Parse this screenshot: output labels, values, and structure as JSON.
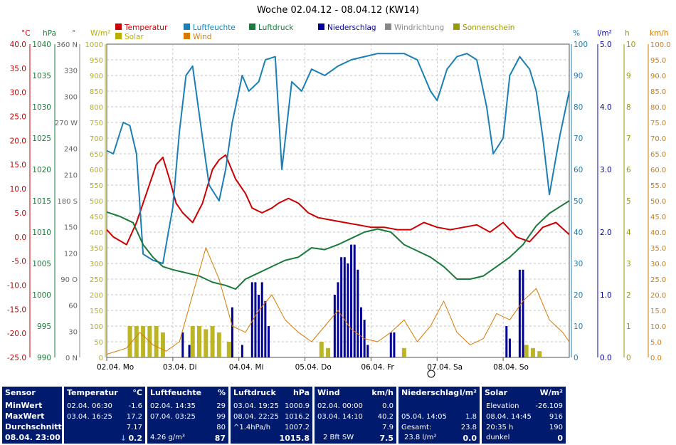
{
  "chart_data": {
    "type": "line",
    "title": "Woche 02.04.12 - 08.04.12 (KW14)",
    "legend": [
      {
        "name": "Temperatur",
        "color": "#cc0000"
      },
      {
        "name": "Luftfeuchte",
        "color": "#1a7fb5"
      },
      {
        "name": "Luftdruck",
        "color": "#1a7a3a"
      },
      {
        "name": "Niederschlag",
        "color": "#000099"
      },
      {
        "name": "Windrichtung",
        "color": "#888888"
      },
      {
        "name": "Sonnenschein",
        "color": "#999900"
      },
      {
        "name": "Solar",
        "color": "#b8b000"
      },
      {
        "name": "Wind",
        "color": "#d87a00"
      }
    ],
    "x_ticks": [
      "02.04. Mo",
      "03.04. Di",
      "04.04. Mi",
      "05.04. Do",
      "06.04. Fr",
      "07.04. Sa",
      "08.04. So"
    ],
    "axes": {
      "temperature": {
        "unit": "°C",
        "color": "#cc0000",
        "ticks": [
          "40.0",
          "35.0",
          "30.0",
          "25.0",
          "20.0",
          "15.0",
          "10.0",
          "5.0",
          "0.0",
          "-5.0",
          "-10.0",
          "-15.0",
          "-20.0",
          "-25.0"
        ]
      },
      "pressure": {
        "unit": "hPa",
        "color": "#1a7a3a",
        "ticks": [
          "1040",
          "1035",
          "1030",
          "1025",
          "1020",
          "1015",
          "1010",
          "1005",
          "1000",
          "995",
          "990"
        ]
      },
      "direction": {
        "unit": "°",
        "color": "#666666",
        "ticks": [
          "360 N",
          "330",
          "300",
          "270 W",
          "240",
          "210",
          "180 S",
          "150",
          "120",
          "90 O",
          "60",
          "30",
          "0 N"
        ]
      },
      "solar": {
        "unit": "W/m²",
        "color": "#b8b000",
        "ticks": [
          "1000",
          "950",
          "900",
          "850",
          "800",
          "750",
          "700",
          "650",
          "600",
          "550",
          "500",
          "450",
          "400",
          "350",
          "300",
          "250",
          "200",
          "150",
          "100",
          "50",
          "0"
        ]
      },
      "humidity": {
        "unit": "%",
        "color": "#1a7fb5",
        "ticks": [
          "100",
          "90",
          "80",
          "70",
          "60",
          "50",
          "40",
          "30",
          "20",
          "10",
          "0"
        ]
      },
      "rain": {
        "unit": "l/m²",
        "color": "#000099",
        "ticks": [
          "5.0",
          "4.0",
          "3.0",
          "2.0",
          "1.0",
          "0.0"
        ]
      },
      "sunshine": {
        "unit": "h",
        "color": "#999900",
        "ticks": [
          "10",
          "9",
          "8",
          "7",
          "6",
          "5",
          "4",
          "3",
          "2",
          "1",
          "0"
        ]
      },
      "wind": {
        "unit": "km/h",
        "color": "#d87a00",
        "ticks": [
          "100.0",
          "95.0",
          "90.0",
          "85.0",
          "80.0",
          "75.0",
          "70.0",
          "65.0",
          "60.0",
          "55.0",
          "50.0",
          "45.0",
          "40.0",
          "35.0",
          "30.0",
          "25.0",
          "20.0",
          "15.0",
          "10.0",
          "5.0",
          "0.0"
        ]
      }
    },
    "x_range_days": [
      0,
      7
    ],
    "series": [
      {
        "name": "Temperatur",
        "color": "#cc0000",
        "ylim": [
          -25,
          40
        ],
        "x": [
          0,
          0.1,
          0.3,
          0.45,
          0.6,
          0.75,
          0.85,
          0.95,
          1.05,
          1.15,
          1.3,
          1.45,
          1.6,
          1.7,
          1.8,
          1.95,
          2.1,
          2.2,
          2.35,
          2.5,
          2.6,
          2.75,
          2.9,
          3.05,
          3.2,
          3.4,
          3.6,
          3.8,
          4.0,
          4.2,
          4.4,
          4.6,
          4.8,
          5.0,
          5.2,
          5.4,
          5.6,
          5.8,
          6.0,
          6.2,
          6.4,
          6.6,
          6.8,
          7.0
        ],
        "y": [
          1.5,
          0,
          -1.6,
          3,
          9,
          15,
          16.5,
          12,
          7,
          5,
          3,
          7,
          14,
          16,
          17,
          12,
          9,
          6,
          5,
          6,
          7,
          8,
          7,
          5,
          4,
          3.5,
          3,
          2.5,
          2,
          2,
          1.5,
          1.5,
          3,
          2,
          1.5,
          2,
          2.5,
          1,
          3,
          0,
          -1,
          2,
          3,
          0.5
        ]
      },
      {
        "name": "Luftfeuchte",
        "color": "#1a7fb5",
        "ylim": [
          0,
          100
        ],
        "x": [
          0,
          0.1,
          0.25,
          0.35,
          0.45,
          0.55,
          0.7,
          0.85,
          1.0,
          1.1,
          1.2,
          1.3,
          1.45,
          1.55,
          1.7,
          1.8,
          1.9,
          2.05,
          2.15,
          2.3,
          2.4,
          2.55,
          2.65,
          2.8,
          2.95,
          3.1,
          3.3,
          3.5,
          3.7,
          3.9,
          4.1,
          4.3,
          4.5,
          4.7,
          4.9,
          5.0,
          5.15,
          5.3,
          5.45,
          5.6,
          5.75,
          5.85,
          6.0,
          6.1,
          6.25,
          6.4,
          6.5,
          6.6,
          6.7,
          6.85,
          7.0
        ],
        "y": [
          66,
          65,
          75,
          74,
          65,
          33,
          31,
          30,
          48,
          72,
          90,
          93,
          70,
          55,
          50,
          60,
          75,
          90,
          85,
          88,
          95,
          96,
          60,
          88,
          85,
          92,
          90,
          93,
          95,
          96,
          97,
          97,
          97,
          95,
          85,
          82,
          92,
          96,
          97,
          95,
          80,
          65,
          70,
          90,
          96,
          92,
          85,
          70,
          52,
          70,
          85
        ]
      },
      {
        "name": "Luftdruck",
        "color": "#1a7a3a",
        "ylim": [
          990,
          1040
        ],
        "x": [
          0,
          0.2,
          0.4,
          0.55,
          0.7,
          0.85,
          1.0,
          1.2,
          1.4,
          1.6,
          1.8,
          1.95,
          2.1,
          2.3,
          2.5,
          2.7,
          2.9,
          3.1,
          3.3,
          3.5,
          3.7,
          3.9,
          4.1,
          4.3,
          4.5,
          4.7,
          4.9,
          5.1,
          5.3,
          5.5,
          5.7,
          5.9,
          6.1,
          6.3,
          6.5,
          6.7,
          6.85,
          7.0
        ],
        "y": [
          1013.2,
          1012.5,
          1011.5,
          1008,
          1006,
          1004.5,
          1004,
          1003.5,
          1003,
          1002,
          1001.5,
          1000.9,
          1002.5,
          1003.5,
          1004.5,
          1005.5,
          1006,
          1007.5,
          1007.2,
          1008,
          1009,
          1010,
          1010.5,
          1010,
          1008,
          1007,
          1006,
          1004.5,
          1002.5,
          1002.5,
          1003,
          1004.5,
          1006,
          1008,
          1011,
          1013,
          1014,
          1015
        ]
      },
      {
        "name": "Wind",
        "color": "#d87a00",
        "ylim": [
          0,
          100
        ],
        "x": [
          0,
          0.3,
          0.5,
          0.7,
          0.9,
          1.1,
          1.3,
          1.5,
          1.7,
          1.9,
          2.1,
          2.3,
          2.5,
          2.7,
          2.9,
          3.1,
          3.3,
          3.5,
          3.7,
          3.9,
          4.1,
          4.3,
          4.5,
          4.7,
          4.9,
          5.1,
          5.3,
          5.5,
          5.7,
          5.9,
          6.1,
          6.3,
          6.5,
          6.7,
          6.9,
          7.0
        ],
        "y": [
          1,
          3,
          8,
          4,
          2,
          5,
          20,
          35,
          25,
          10,
          8,
          15,
          20,
          12,
          8,
          5,
          10,
          15,
          9,
          6,
          5,
          8,
          12,
          5,
          10,
          18,
          8,
          4,
          6,
          14,
          12,
          18,
          22,
          12,
          8,
          5
        ]
      }
    ],
    "rain_bars": {
      "ylim": [
        0,
        5
      ],
      "x": [
        1.15,
        1.25,
        1.9,
        2.05,
        2.2,
        2.25,
        2.3,
        2.35,
        2.4,
        2.45,
        3.45,
        3.5,
        3.55,
        3.6,
        3.65,
        3.7,
        3.75,
        3.8,
        3.85,
        3.9,
        3.95,
        4.3,
        4.35,
        6.05,
        6.1,
        6.25,
        6.3
      ],
      "y": [
        0.4,
        0.2,
        0.8,
        0.2,
        1.2,
        1.2,
        1.0,
        1.2,
        0.9,
        0.5,
        1.0,
        1.2,
        1.6,
        1.6,
        1.5,
        1.8,
        1.8,
        1.4,
        0.8,
        0.6,
        0.2,
        0.4,
        0.4,
        0.5,
        0.3,
        1.4,
        1.4
      ]
    },
    "sunshine_bars": {
      "ylim": [
        0,
        10
      ],
      "x": [
        0.35,
        0.45,
        0.55,
        0.65,
        0.75,
        0.85,
        1.3,
        1.4,
        1.5,
        1.6,
        1.7,
        1.85,
        3.25,
        3.35,
        4.5,
        6.35,
        6.45,
        6.55
      ],
      "y": [
        1,
        1,
        1,
        1,
        1,
        0.8,
        1,
        1,
        0.9,
        1,
        0.8,
        0.5,
        0.5,
        0.3,
        0.3,
        0.4,
        0.3,
        0.2
      ]
    }
  },
  "sensor": {
    "title": "Sensor",
    "min_label": "MinWert",
    "max_label": "MaxWert",
    "avg_label": "Durchschnitt",
    "now": "08.04. 23:00"
  },
  "temperature": {
    "title": "Temperatur",
    "unit": "°C",
    "min_time": "02.04.  06:30",
    "min_val": "-1.6",
    "max_time": "03.04.  16:25",
    "max_val": "17.2",
    "avg": "7.17",
    "now_prefix": "↓",
    "now": "0.2"
  },
  "humidity": {
    "title": "Luftfeuchte",
    "unit": "%",
    "min_time": "02.04.  14:35",
    "min_val": "29",
    "max_time": "07.04.  03:25",
    "max_val": "99",
    "avg": "80",
    "abs": "4.26 g/m³",
    "now": "87"
  },
  "pressure": {
    "title": "Luftdruck",
    "unit": "hPa",
    "min_time": "03.04.  19:25",
    "min_val": "1000.9",
    "max_time": "08.04.  22:25",
    "max_val": "1016.2",
    "trend": "^1.4hPa/h",
    "avg": "1007.2",
    "now": "1015.8"
  },
  "wind": {
    "title": "Wind",
    "unit": "km/h",
    "min_time": "02.04.  00:00",
    "min_val": "0.0",
    "max_time": "03.04.  14:10",
    "max_val": "40.2",
    "avg": "7.9",
    "bft": "2 Bft SW",
    "now": "7.5"
  },
  "rain": {
    "title": "Niederschlag",
    "unit": "l/m²",
    "max_time": "05.04.  14:05",
    "max_val": "1.8",
    "total_label": "Gesamt:",
    "total": "23.8",
    "sum_text": "23.8 l/m²",
    "now": "0.0"
  },
  "solar": {
    "title": "Solar",
    "unit": "W/m²",
    "elev_label": "Elevation",
    "elev": "-26.109",
    "max_time": "08.04.  14:45",
    "max_val": "916",
    "sun_hours": "20:35 h",
    "sun_val": "190",
    "state": "dunkel",
    "now": "0"
  }
}
